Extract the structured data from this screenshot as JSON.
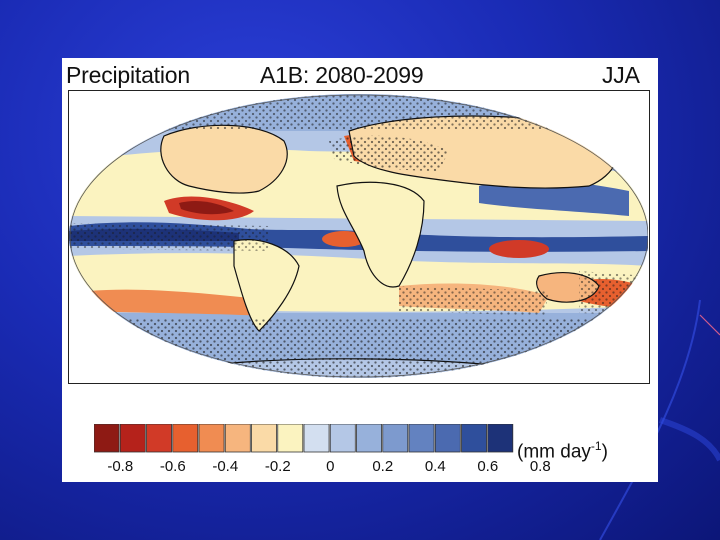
{
  "slide": {
    "colors": {
      "background": "#1a2bb5",
      "card": "#ffffff"
    }
  },
  "figure": {
    "title_left": "Precipitation",
    "title_mid": "A1B: 2080-2099",
    "title_right": "JJA",
    "units_prefix": "(mm day",
    "units_exp": "-1",
    "units_suffix": ")",
    "colorbar": {
      "ticks": [
        "-0.8",
        "-0.6",
        "-0.4",
        "-0.2",
        "0",
        "0.2",
        "0.4",
        "0.6",
        "0.8"
      ],
      "colors": [
        "#8e1a14",
        "#b5221b",
        "#d13a27",
        "#e7602f",
        "#f08c52",
        "#f6b57e",
        "#fadaa7",
        "#fbf3c0",
        "#d3dff0",
        "#b4c7e6",
        "#97b1db",
        "#7d9ace",
        "#6382c0",
        "#4b6ab0",
        "#2f4f9c",
        "#1d3278"
      ]
    },
    "map": {
      "projection": "Robinson",
      "regions": {
        "drying": "#d13a27",
        "strong_drying": "#b5221b",
        "mild_drying": "#f6b57e",
        "slight_drying": "#fadaa7",
        "neutral": "#fbf3c0",
        "slight_wetting": "#b4c7e6",
        "wetting": "#6382c0",
        "strong_wetting": "#2f4f9c"
      }
    }
  }
}
